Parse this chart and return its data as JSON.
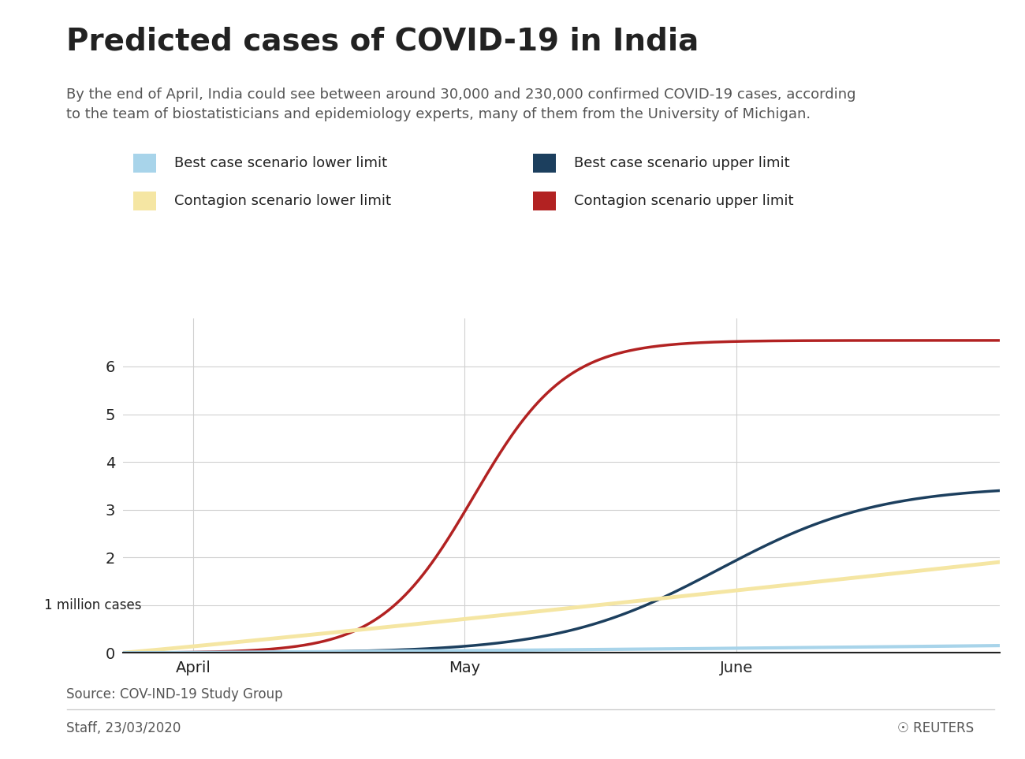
{
  "title": "Predicted cases of COVID-19 in India",
  "subtitle": "By the end of April, India could see between around 30,000 and 230,000 confirmed COVID-19 cases, according\nto the team of biostatisticians and epidemiology experts, many of them from the University of Michigan.",
  "ylabel": "1 million cases",
  "source": "Source: COV-IND-19 Study Group",
  "credit": "Staff, 23/03/2020",
  "reuters": "REUTERS",
  "ylim": [
    0,
    7
  ],
  "yticks": [
    0,
    1,
    2,
    3,
    4,
    5,
    6
  ],
  "xtick_labels": [
    "April",
    "May",
    "June"
  ],
  "xtick_positions": [
    8,
    39,
    70
  ],
  "xlim": [
    0,
    100
  ],
  "legend_entries": [
    {
      "label": "Best case scenario lower limit",
      "color": "#a8d4ea"
    },
    {
      "label": "Best case scenario upper limit",
      "color": "#1c3f5e"
    },
    {
      "label": "Contagion scenario lower limit",
      "color": "#f5e6a3"
    },
    {
      "label": "Contagion scenario upper limit",
      "color": "#b22222"
    }
  ],
  "colors": {
    "best_lower": "#a8d4ea",
    "best_upper": "#1c3f5e",
    "contagion_lower": "#f5e6a3",
    "contagion_upper": "#b22222",
    "background": "#ffffff",
    "grid": "#d0d0d0",
    "text": "#222222",
    "subtext": "#555555",
    "axis_line": "#222222",
    "top_bar": "#b22222",
    "separator": "#cccccc"
  },
  "line_widths": {
    "best_lower": 3.0,
    "best_upper": 2.5,
    "contagion_lower": 3.5,
    "contagion_upper": 2.5
  },
  "title_fontsize": 28,
  "subtitle_fontsize": 13,
  "tick_fontsize": 14,
  "legend_fontsize": 13,
  "source_fontsize": 12
}
